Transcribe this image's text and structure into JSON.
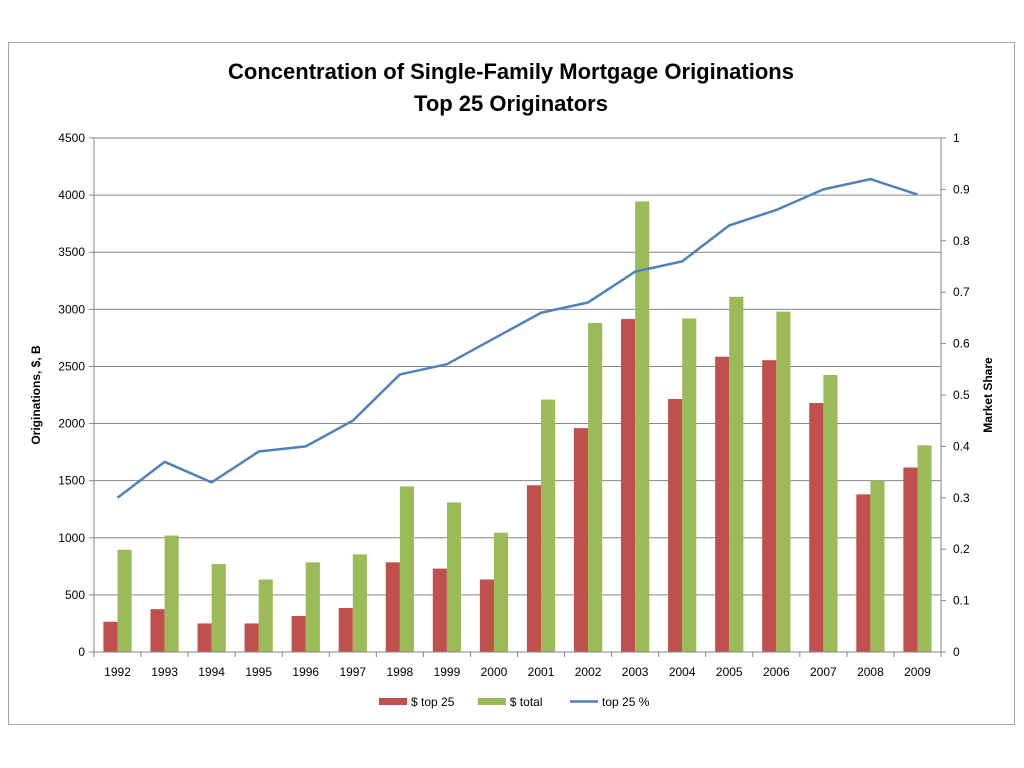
{
  "chart_data": {
    "type": "bar",
    "title": "Concentration of Single-Family Mortgage Originations",
    "subtitle": "Top 25  Originators",
    "ylabel": "Originations, $, B",
    "y2label": "Market Share",
    "categories": [
      "1992",
      "1993",
      "1994",
      "1995",
      "1996",
      "1997",
      "1998",
      "1999",
      "2000",
      "2001",
      "2002",
      "2003",
      "2004",
      "2005",
      "2006",
      "2007",
      "2008",
      "2009"
    ],
    "ylim": [
      0,
      4500
    ],
    "yticks": [
      0,
      500,
      1000,
      1500,
      2000,
      2500,
      3000,
      3500,
      4000,
      4500
    ],
    "y2lim": [
      0,
      1
    ],
    "y2ticks": [
      0,
      0.1,
      0.2,
      0.3,
      0.4,
      0.5,
      0.6,
      0.7,
      0.8,
      0.9,
      1
    ],
    "grid": true,
    "legend_position": "bottom",
    "series": [
      {
        "name": "$ top 25",
        "kind": "bar",
        "axis": "left",
        "color": "#c0504d",
        "values": [
          265,
          375,
          250,
          250,
          315,
          385,
          785,
          730,
          635,
          1460,
          1960,
          2915,
          2215,
          2585,
          2555,
          2180,
          1380,
          1615
        ]
      },
      {
        "name": "$ total",
        "kind": "bar",
        "axis": "left",
        "color": "#9bbb59",
        "values": [
          895,
          1020,
          770,
          635,
          785,
          855,
          1450,
          1310,
          1045,
          2210,
          2880,
          3945,
          2920,
          3110,
          2980,
          2425,
          1500,
          1810
        ]
      },
      {
        "name": "top 25 %",
        "kind": "line",
        "axis": "right",
        "color": "#4f81bd",
        "values": [
          0.3,
          0.37,
          0.33,
          0.39,
          0.4,
          0.45,
          0.54,
          0.56,
          0.61,
          0.66,
          0.68,
          0.74,
          0.76,
          0.83,
          0.86,
          0.9,
          0.92,
          0.89
        ]
      }
    ]
  }
}
